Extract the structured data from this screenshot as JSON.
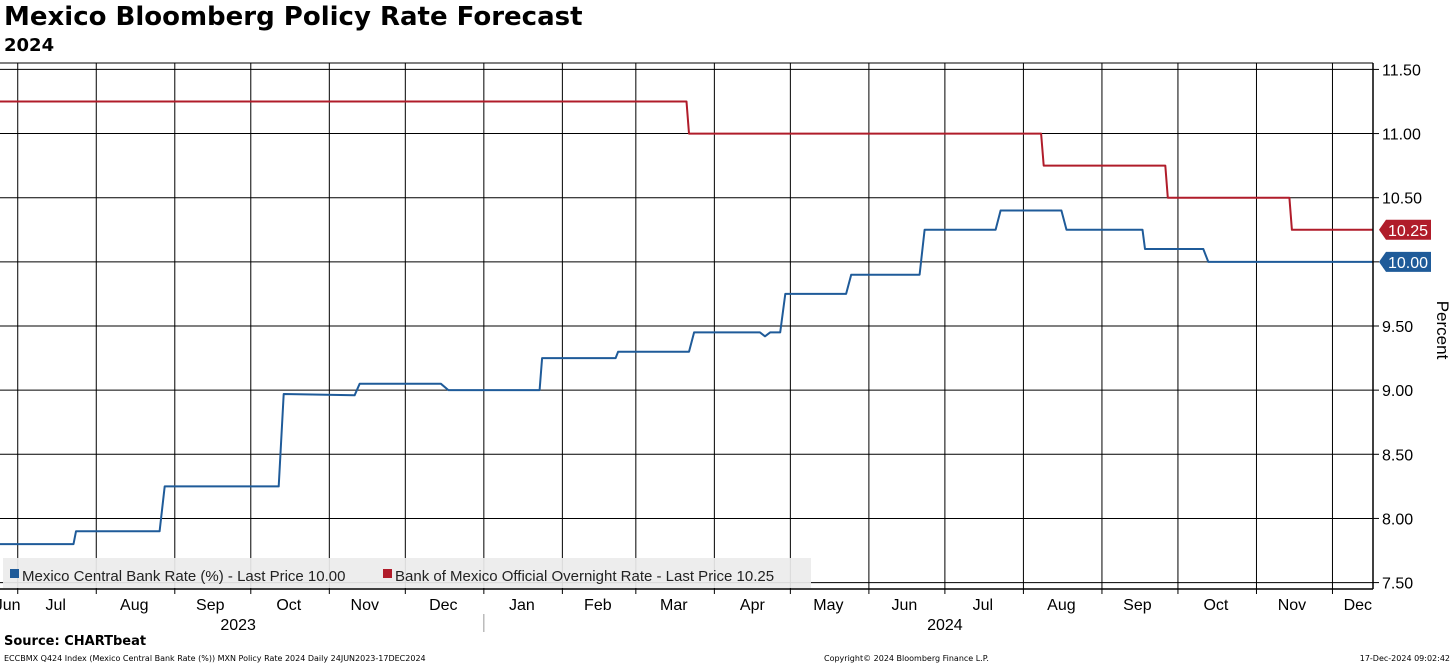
{
  "footer": {
    "source": "Source: CHARTbeat",
    "ticker_info": "ECCBMX Q424 Index (Mexico Central Bank Rate (%)) MXN Policy Rate 2024  Daily 24JUN2023-17DEC2024",
    "copyright": "Copyright© 2024 Bloomberg Finance L.P.",
    "timestamp": "17-Dec-2024 09:02:42"
  },
  "chart_data": {
    "type": "line",
    "title": "Mexico Bloomberg Policy Rate Forecast",
    "subtitle": "2024",
    "ylabel": "Percent",
    "ylim": [
      7.5,
      11.5
    ],
    "yticks": [
      "11.50",
      "11.00",
      "10.50",
      "10.00",
      "9.50",
      "9.00",
      "8.50",
      "8.00",
      "7.50"
    ],
    "xlim": [
      "2023-06-24",
      "2024-12-17"
    ],
    "x_month_labels": [
      {
        "label": "Jun",
        "date": "2023-06-27"
      },
      {
        "label": "Jul",
        "date": "2023-07-16"
      },
      {
        "label": "Aug",
        "date": "2023-08-16"
      },
      {
        "label": "Sep",
        "date": "2023-09-15"
      },
      {
        "label": "Oct",
        "date": "2023-10-16"
      },
      {
        "label": "Nov",
        "date": "2023-11-15"
      },
      {
        "label": "Dec",
        "date": "2023-12-16"
      },
      {
        "label": "Jan",
        "date": "2024-01-16"
      },
      {
        "label": "Feb",
        "date": "2024-02-15"
      },
      {
        "label": "Mar",
        "date": "2024-03-16"
      },
      {
        "label": "Apr",
        "date": "2024-04-16"
      },
      {
        "label": "May",
        "date": "2024-05-16"
      },
      {
        "label": "Jun",
        "date": "2024-06-15"
      },
      {
        "label": "Jul",
        "date": "2024-07-16"
      },
      {
        "label": "Aug",
        "date": "2024-08-16"
      },
      {
        "label": "Sep",
        "date": "2024-09-15"
      },
      {
        "label": "Oct",
        "date": "2024-10-16"
      },
      {
        "label": "Nov",
        "date": "2024-11-15"
      },
      {
        "label": "Dec",
        "date": "2024-12-11"
      }
    ],
    "x_year_labels": [
      {
        "label": "2023",
        "date": "2023-09-26"
      },
      {
        "label": "2024",
        "date": "2024-07-01"
      }
    ],
    "x_year_divider": "2024-01-01",
    "x_gridlines": [
      "2023-07-01",
      "2023-08-01",
      "2023-09-01",
      "2023-10-01",
      "2023-11-01",
      "2023-12-01",
      "2024-01-01",
      "2024-02-01",
      "2024-03-01",
      "2024-04-01",
      "2024-05-01",
      "2024-06-01",
      "2024-07-01",
      "2024-08-01",
      "2024-09-01",
      "2024-10-01",
      "2024-11-01",
      "2024-12-01"
    ],
    "legend_position": "bottom-left",
    "series": [
      {
        "name": "Mexico Central Bank Rate (%)",
        "legend_label": "Mexico Central Bank Rate (%) - Last Price 10.00",
        "color": "#1f5b99",
        "last_value_label": "10.00",
        "points": [
          [
            "2023-06-24",
            7.8
          ],
          [
            "2023-07-23",
            7.8
          ],
          [
            "2023-07-24",
            7.9
          ],
          [
            "2023-08-26",
            7.9
          ],
          [
            "2023-08-28",
            8.25
          ],
          [
            "2023-10-12",
            8.25
          ],
          [
            "2023-10-14",
            8.97
          ],
          [
            "2023-11-11",
            8.96
          ],
          [
            "2023-11-13",
            9.05
          ],
          [
            "2023-12-15",
            9.05
          ],
          [
            "2023-12-18",
            9.0
          ],
          [
            "2024-01-23",
            9.0
          ],
          [
            "2024-01-24",
            9.25
          ],
          [
            "2024-02-22",
            9.25
          ],
          [
            "2024-02-23",
            9.3
          ],
          [
            "2024-03-22",
            9.3
          ],
          [
            "2024-03-24",
            9.45
          ],
          [
            "2024-04-19",
            9.45
          ],
          [
            "2024-04-21",
            9.42
          ],
          [
            "2024-04-23",
            9.45
          ],
          [
            "2024-04-27",
            9.45
          ],
          [
            "2024-04-29",
            9.75
          ],
          [
            "2024-05-23",
            9.75
          ],
          [
            "2024-05-25",
            9.9
          ],
          [
            "2024-06-21",
            9.9
          ],
          [
            "2024-06-23",
            10.25
          ],
          [
            "2024-07-21",
            10.25
          ],
          [
            "2024-07-23",
            10.4
          ],
          [
            "2024-08-16",
            10.4
          ],
          [
            "2024-08-18",
            10.25
          ],
          [
            "2024-09-17",
            10.25
          ],
          [
            "2024-09-18",
            10.1
          ],
          [
            "2024-10-11",
            10.1
          ],
          [
            "2024-10-13",
            10.0
          ],
          [
            "2024-12-17",
            10.0
          ]
        ]
      },
      {
        "name": "Bank of Mexico Official Overnight Rate",
        "legend_label": "Bank of Mexico Official Overnight Rate - Last Price 10.25",
        "color": "#b01c2a",
        "last_value_label": "10.25",
        "points": [
          [
            "2023-06-24",
            11.25
          ],
          [
            "2024-03-21",
            11.25
          ],
          [
            "2024-03-22",
            11.0
          ],
          [
            "2024-08-08",
            11.0
          ],
          [
            "2024-08-09",
            10.75
          ],
          [
            "2024-09-26",
            10.75
          ],
          [
            "2024-09-27",
            10.5
          ],
          [
            "2024-11-14",
            10.5
          ],
          [
            "2024-11-15",
            10.25
          ],
          [
            "2024-12-17",
            10.25
          ]
        ]
      }
    ]
  }
}
